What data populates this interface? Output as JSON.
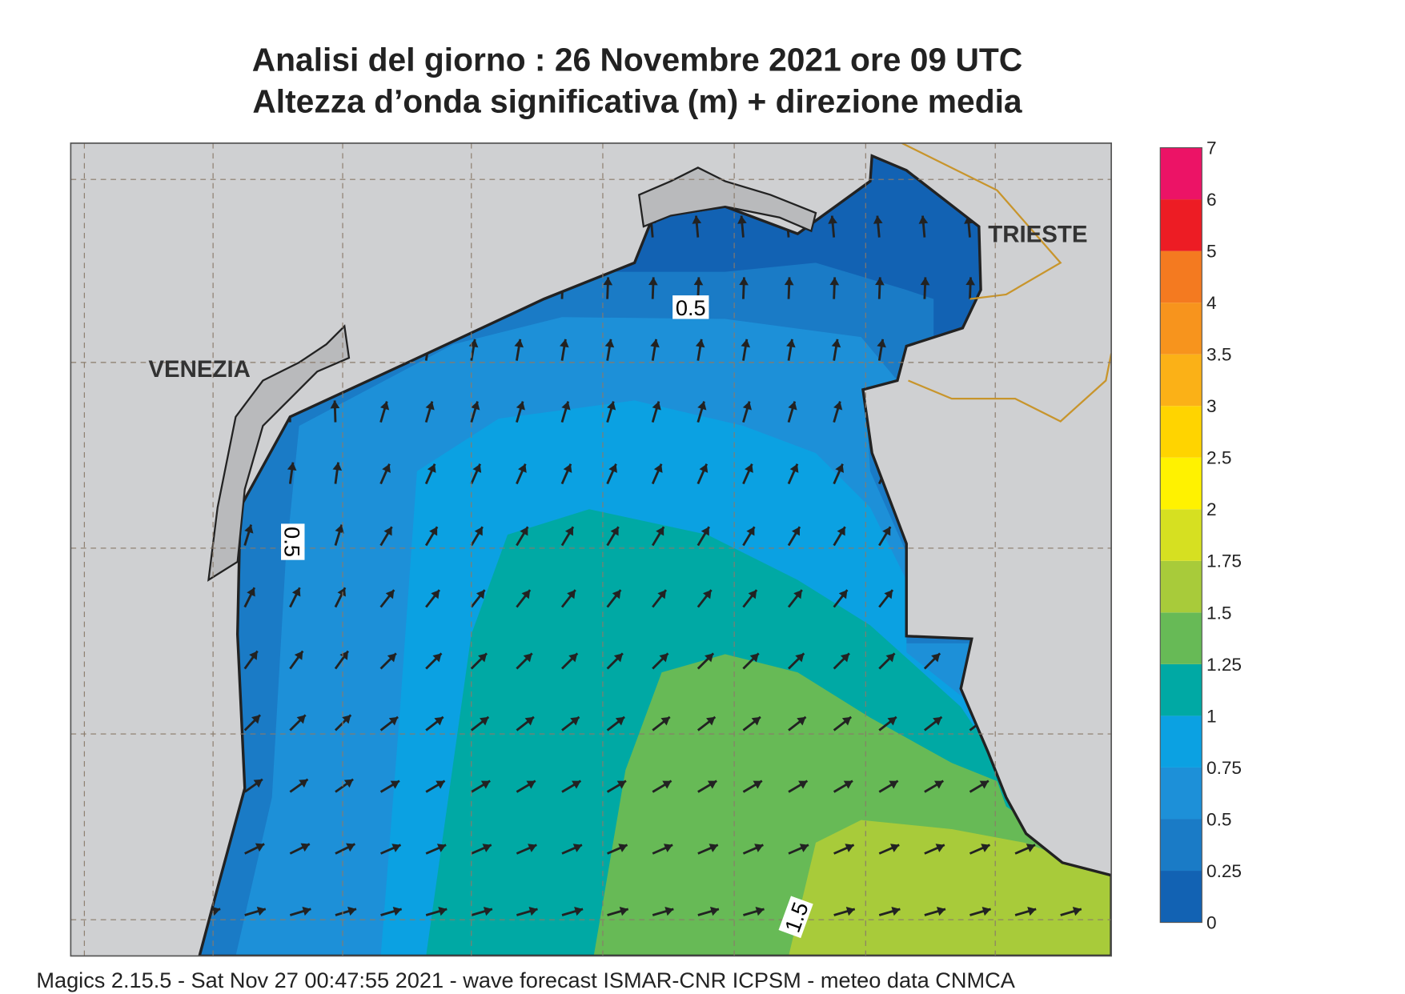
{
  "header": {
    "title": "Analisi del giorno :  26 Novembre  2021   ore 09 UTC",
    "subtitle": "Altezza d’onda significativa (m) + direzione media"
  },
  "map": {
    "places": [
      "VENEZIA",
      "TRIESTE"
    ],
    "contour_labels": [
      0.5,
      0.5,
      1.5
    ]
  },
  "colorbar": {
    "ticks": [
      0,
      0.25,
      0.5,
      0.75,
      1,
      1.25,
      1.5,
      1.75,
      2,
      2.5,
      3,
      3.5,
      4,
      5,
      6,
      7
    ],
    "colors": [
      "#1262b3",
      "#1a7bc6",
      "#1d90d8",
      "#0ba1e2",
      "#00a9a4",
      "#67ba56",
      "#a8cb3a",
      "#d6e021",
      "#fff200",
      "#ffd400",
      "#fbb117",
      "#f7941d",
      "#f47a20",
      "#ed1c24",
      "#ec1366"
    ]
  },
  "footer": "Magics 2.15.5 - Sat Nov 27 00:47:55 2021 - wave forecast  ISMAR-CNR  ICPSM - meteo data   CNMCA"
}
